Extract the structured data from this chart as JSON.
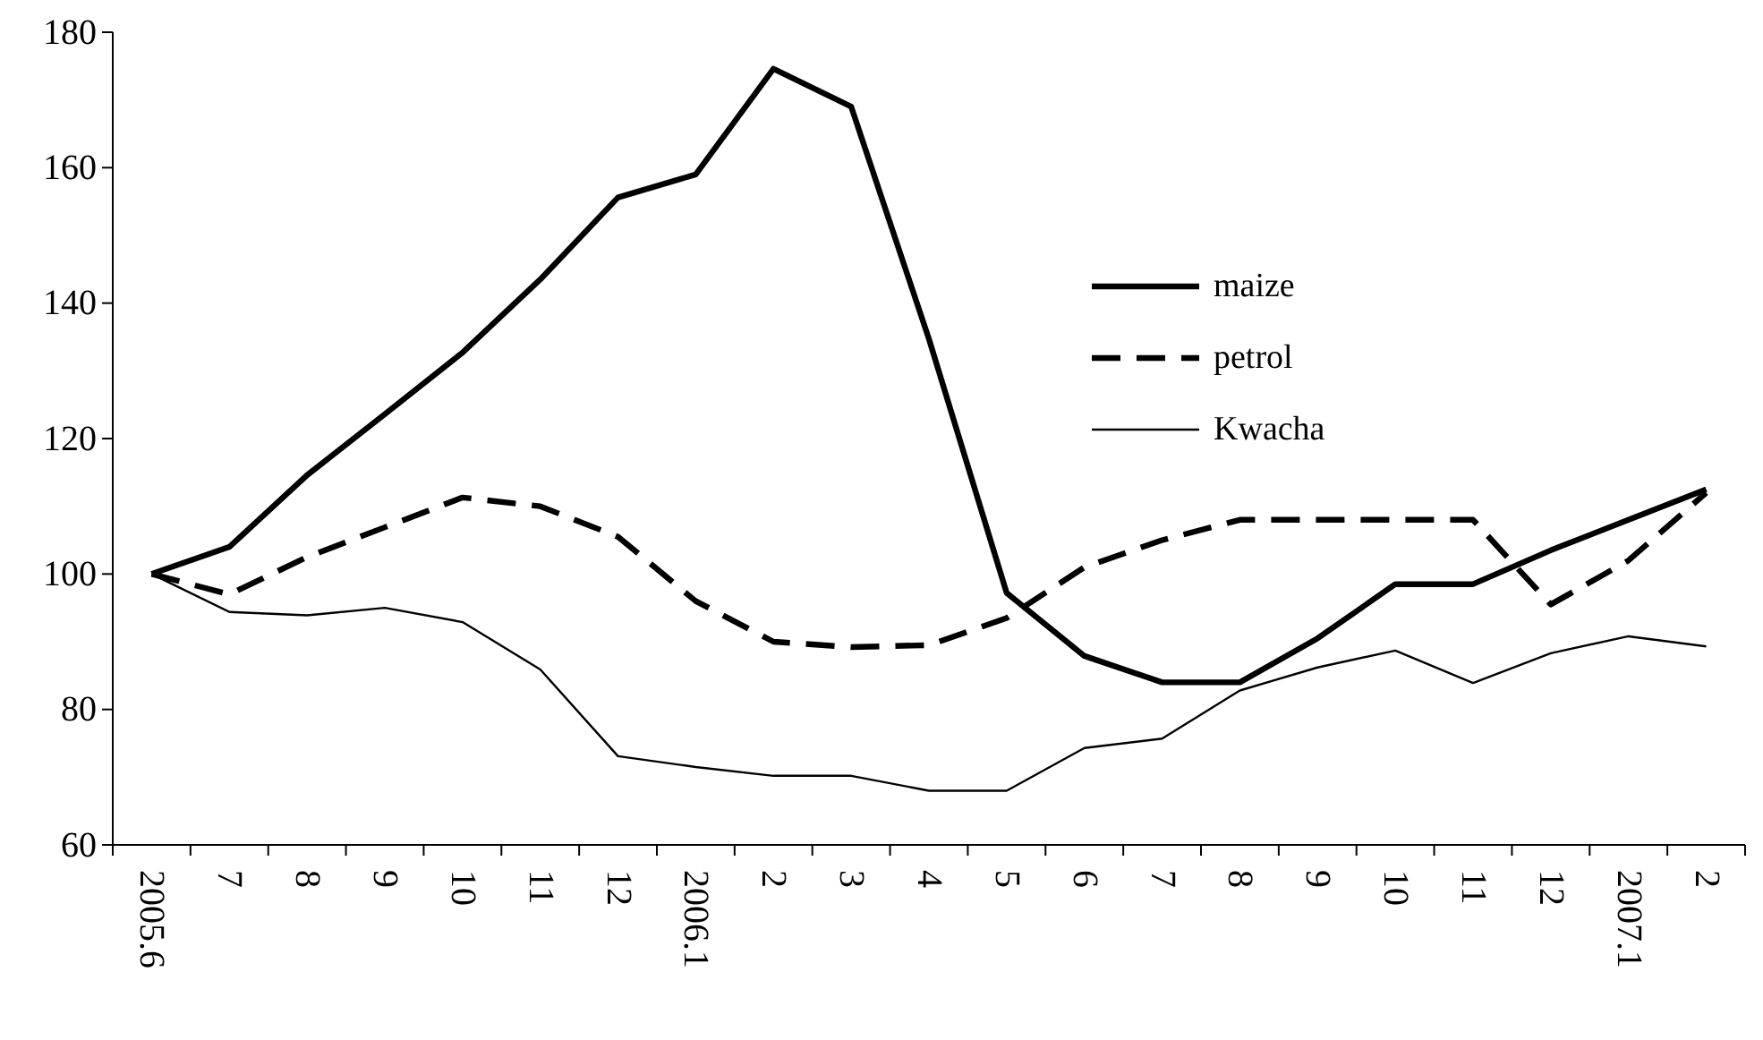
{
  "chart_data": {
    "type": "line",
    "categories": [
      "2005.6",
      "7",
      "8",
      "9",
      "10",
      "11",
      "12",
      "2006.1",
      "2",
      "3",
      "4",
      "5",
      "6",
      "7",
      "8",
      "9",
      "10",
      "11",
      "12",
      "2007.1",
      "2"
    ],
    "series": [
      {
        "name": "maize",
        "color": "#000000",
        "line_style": "solid",
        "values": [
          100,
          104,
          114.6,
          123.6,
          132.7,
          143.5,
          155.6,
          159,
          174.6,
          169,
          134.7,
          97.2,
          87.9,
          84,
          84,
          90.5,
          98.5,
          98.5,
          103.5,
          108,
          112.5
        ]
      },
      {
        "name": "petrol",
        "color": "#000000",
        "line_style": "dashed",
        "values": [
          100,
          97,
          102.5,
          106.9,
          111.3,
          110,
          105.5,
          96,
          90,
          89.2,
          89.5,
          93.5,
          101,
          105,
          108,
          108,
          108,
          108,
          95.5,
          102,
          112
        ]
      },
      {
        "name": "Kwacha",
        "color": "#000000",
        "line_style": "solid",
        "values": [
          100,
          94.4,
          93.9,
          95,
          92.9,
          85.9,
          73.1,
          71.5,
          70.2,
          70.2,
          68,
          68,
          74.3,
          75.7,
          82.8,
          86.2,
          88.7,
          83.9,
          88.3,
          90.8,
          89.3
        ]
      }
    ],
    "ylim": [
      60,
      180
    ],
    "yticks": [
      60,
      80,
      100,
      120,
      140,
      160,
      180
    ],
    "grid": false,
    "legend": "right",
    "marker": "none"
  }
}
